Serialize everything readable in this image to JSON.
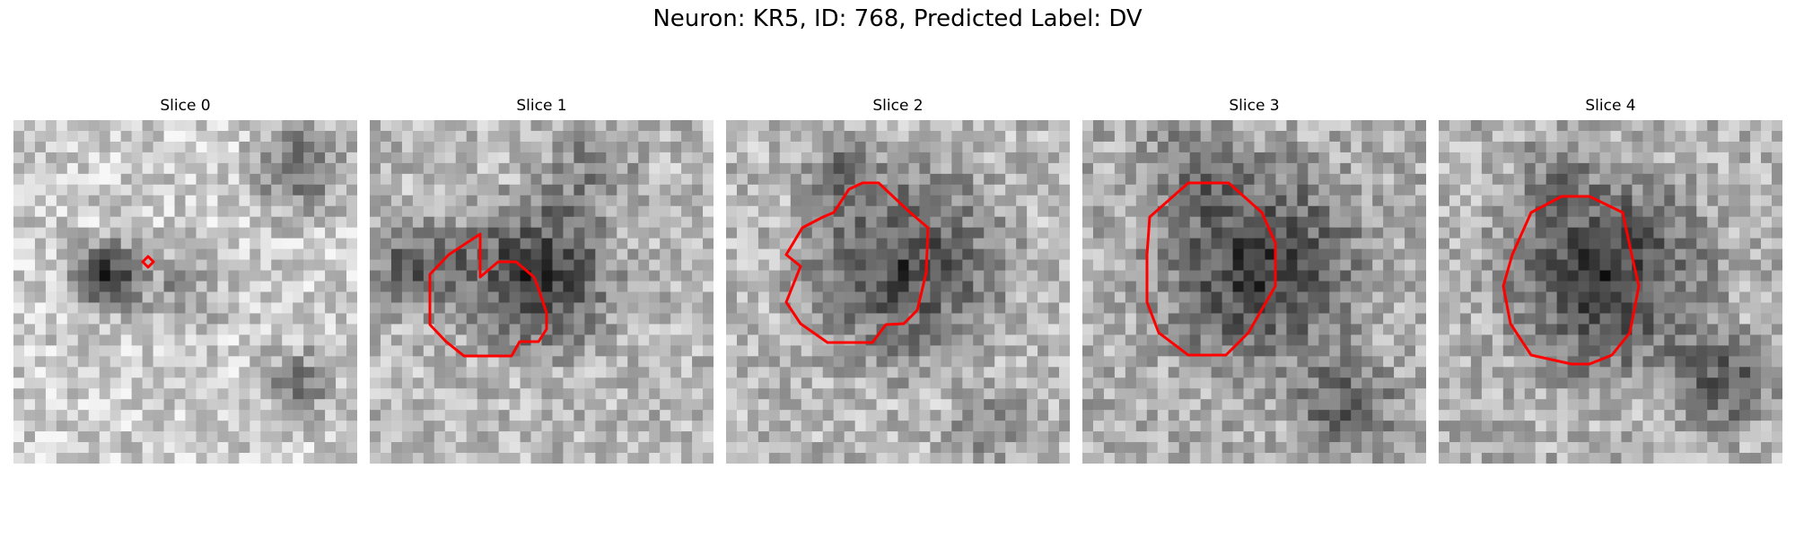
{
  "title": "Neuron: KR5, ID: 768, Predicted Label: DV",
  "contour_color": "#ff0000",
  "panels": [
    {
      "label": "Slice 0",
      "shade": "light",
      "marker": "small-diamond"
    },
    {
      "label": "Slice 1",
      "shade": "medium",
      "marker": "polygon-contour"
    },
    {
      "label": "Slice 2",
      "shade": "medium",
      "marker": "polygon-contour"
    },
    {
      "label": "Slice 3",
      "shade": "medium",
      "marker": "polygon-contour"
    },
    {
      "label": "Slice 4",
      "shade": "medium",
      "marker": "polygon-contour"
    }
  ]
}
